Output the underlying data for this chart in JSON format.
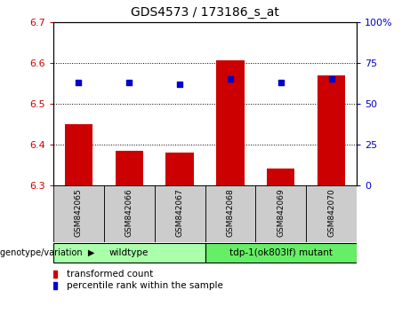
{
  "title": "GDS4573 / 173186_s_at",
  "samples": [
    "GSM842065",
    "GSM842066",
    "GSM842067",
    "GSM842068",
    "GSM842069",
    "GSM842070"
  ],
  "bar_values": [
    6.45,
    6.385,
    6.38,
    6.605,
    6.34,
    6.57
  ],
  "percentile_values": [
    63,
    63,
    62,
    65,
    63,
    65
  ],
  "bar_bottom": 6.3,
  "ylim_left": [
    6.3,
    6.7
  ],
  "ylim_right": [
    0,
    100
  ],
  "yticks_left": [
    6.3,
    6.4,
    6.5,
    6.6,
    6.7
  ],
  "yticks_right": [
    0,
    25,
    50,
    75,
    100
  ],
  "bar_color": "#cc0000",
  "dot_color": "#0000cc",
  "groups": [
    {
      "label": "wildtype",
      "indices": [
        0,
        1,
        2
      ],
      "color": "#aaffaa"
    },
    {
      "label": "tdp-1(ok803lf) mutant",
      "indices": [
        3,
        4,
        5
      ],
      "color": "#66ee66"
    }
  ],
  "genotype_label": "genotype/variation",
  "legend_items": [
    {
      "color": "#cc0000",
      "label": "transformed count"
    },
    {
      "color": "#0000cc",
      "label": "percentile rank within the sample"
    }
  ],
  "tick_color_left": "#cc0000",
  "tick_color_right": "#0000cc",
  "sample_box_color": "#cccccc",
  "bar_width": 0.55,
  "figsize": [
    4.61,
    3.54
  ],
  "dpi": 100
}
